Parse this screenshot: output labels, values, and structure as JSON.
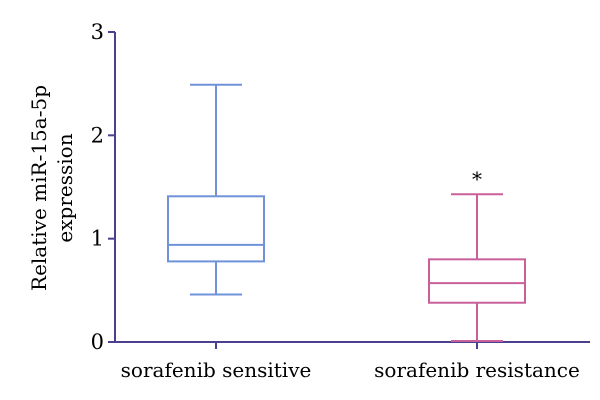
{
  "chart_data": {
    "type": "box",
    "title": "",
    "xlabel": "",
    "ylabel_lines": [
      "Relative miR-15a-5p",
      "expression"
    ],
    "ylim": [
      0,
      3
    ],
    "yticks": [
      0,
      1,
      2,
      3
    ],
    "grid": false,
    "legend": "none",
    "axis_color": "#4b3f8f",
    "categories": [
      "sorafenib sensitive",
      "sorafenib resistance"
    ],
    "boxes": [
      {
        "category": "sorafenib sensitive",
        "min": 0.46,
        "q1": 0.78,
        "median": 0.94,
        "q3": 1.41,
        "max": 2.49,
        "color": "#6f93d9",
        "annotation": ""
      },
      {
        "category": "sorafenib resistance",
        "min": 0.01,
        "q1": 0.38,
        "median": 0.57,
        "q3": 0.8,
        "max": 1.43,
        "color": "#c9609b",
        "annotation": "*"
      }
    ]
  }
}
